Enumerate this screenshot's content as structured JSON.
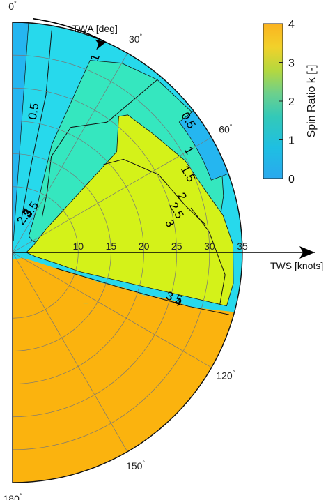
{
  "chart_data": {
    "type": "polar-contour",
    "angle_axis": {
      "label": "TWA [deg]",
      "range": [
        0,
        180
      ],
      "ticks": [
        0,
        30,
        60,
        120,
        150,
        180
      ],
      "tick_suffix": "°"
    },
    "radial_axis": {
      "label": "TWS [knots]",
      "range": [
        0,
        35
      ],
      "ticks": [
        10,
        15,
        20,
        25,
        30,
        35
      ]
    },
    "colorbar": {
      "label": "Spin Ratio k [-]",
      "range": [
        0,
        4
      ],
      "ticks": [
        0,
        1,
        2,
        3,
        4
      ],
      "colormap": "parula"
    },
    "contour_levels": [
      0.5,
      1,
      1.5,
      2,
      2.5,
      3,
      3.5,
      4
    ],
    "contour_labels": [
      "0.5",
      "1",
      "0.5",
      "1",
      "1.5",
      "2",
      "2.5",
      "3",
      "3.5",
      "4",
      "2.5",
      "3",
      "3.5"
    ],
    "regions": [
      {
        "k": 0.25,
        "approx_twa_range": [
          0,
          5
        ]
      },
      {
        "k": 0.75,
        "approx_twa_range": [
          5,
          90
        ]
      },
      {
        "k": 1.25,
        "approx_twa_range": [
          20,
          75
        ]
      },
      {
        "k": 3.25,
        "approx_twa_range": [
          40,
          108
        ]
      },
      {
        "k": 3.75,
        "approx_twa_range": [
          110,
          180
        ]
      }
    ]
  }
}
